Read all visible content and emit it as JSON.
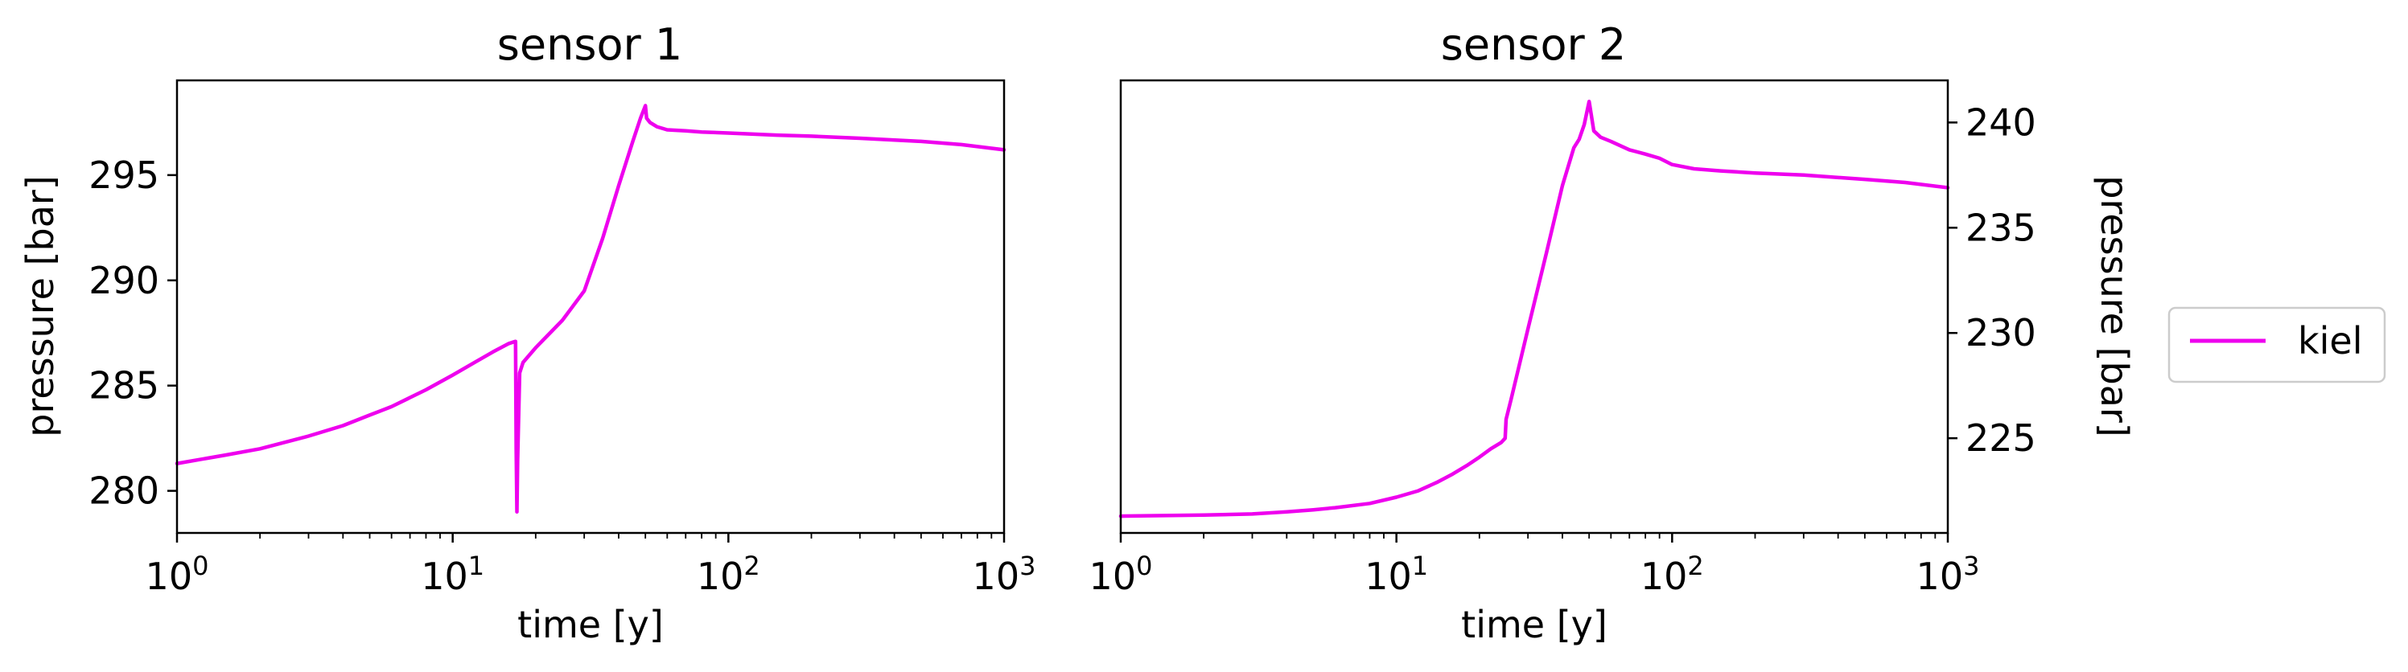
{
  "legend": {
    "label": "kiel",
    "color": "#EE00EE",
    "placement": "right"
  },
  "chart_data": [
    {
      "type": "line",
      "title": "sensor 1",
      "xlabel": "time [y]",
      "ylabel": "pressure [bar]",
      "xscale": "log",
      "xlim": [
        1,
        1000
      ],
      "ylim": [
        278,
        299.5
      ],
      "xticks": [
        1,
        10,
        100,
        1000
      ],
      "xtick_labels": [
        [
          "10",
          "0"
        ],
        [
          "10",
          "1"
        ],
        [
          "10",
          "2"
        ],
        [
          "10",
          "3"
        ]
      ],
      "yticks": [
        280,
        285,
        290,
        295
      ],
      "ytick_labels": [
        "280",
        "285",
        "290",
        "295"
      ],
      "yaxis_side": "left",
      "grid": false,
      "series": [
        {
          "name": "kiel",
          "color": "#EE00EE",
          "x": [
            1,
            1.5,
            2,
            3,
            4,
            5,
            6,
            8,
            10,
            12,
            14,
            16,
            16.9,
            17.0,
            17.1,
            17.2,
            17.5,
            18,
            20,
            25,
            30,
            35,
            40,
            45,
            48,
            50,
            50.5,
            52,
            55,
            60,
            70,
            80,
            100,
            150,
            200,
            300,
            500,
            700,
            1000
          ],
          "y": [
            281.3,
            281.7,
            282.0,
            282.6,
            283.1,
            283.6,
            284.0,
            284.8,
            285.5,
            286.1,
            286.6,
            287.0,
            287.1,
            282.0,
            279.0,
            281.5,
            285.6,
            286.1,
            286.8,
            288.1,
            289.5,
            292.0,
            294.5,
            296.6,
            297.7,
            298.3,
            297.7,
            297.5,
            297.3,
            297.15,
            297.1,
            297.05,
            297.0,
            296.9,
            296.85,
            296.75,
            296.6,
            296.45,
            296.2
          ]
        }
      ]
    },
    {
      "type": "line",
      "title": "sensor 2",
      "xlabel": "time [y]",
      "ylabel": "pressure [bar]",
      "xscale": "log",
      "xlim": [
        1,
        1000
      ],
      "ylim": [
        220.5,
        242
      ],
      "xticks": [
        1,
        10,
        100,
        1000
      ],
      "xtick_labels": [
        [
          "10",
          "0"
        ],
        [
          "10",
          "1"
        ],
        [
          "10",
          "2"
        ],
        [
          "10",
          "3"
        ]
      ],
      "yticks": [
        225,
        230,
        235,
        240
      ],
      "ytick_labels": [
        "225",
        "230",
        "235",
        "240"
      ],
      "yaxis_side": "right",
      "grid": false,
      "series": [
        {
          "name": "kiel",
          "color": "#EE00EE",
          "x": [
            1,
            2,
            3,
            4,
            5,
            6,
            8,
            10,
            12,
            14,
            16,
            18,
            20,
            22,
            24,
            24.8,
            25,
            26,
            30,
            35,
            40,
            44,
            46,
            48,
            50,
            52,
            55,
            60,
            70,
            80,
            90,
            100,
            120,
            150,
            200,
            300,
            500,
            700,
            1000
          ],
          "y": [
            221.3,
            221.35,
            221.4,
            221.5,
            221.6,
            221.7,
            221.9,
            222.2,
            222.5,
            222.9,
            223.3,
            223.7,
            224.1,
            224.5,
            224.8,
            225.0,
            225.9,
            226.8,
            230.2,
            233.8,
            237.0,
            238.8,
            239.2,
            239.9,
            241.0,
            239.6,
            239.3,
            239.1,
            238.7,
            238.5,
            238.3,
            238.0,
            237.8,
            237.7,
            237.6,
            237.5,
            237.3,
            237.15,
            236.9
          ]
        }
      ]
    }
  ]
}
